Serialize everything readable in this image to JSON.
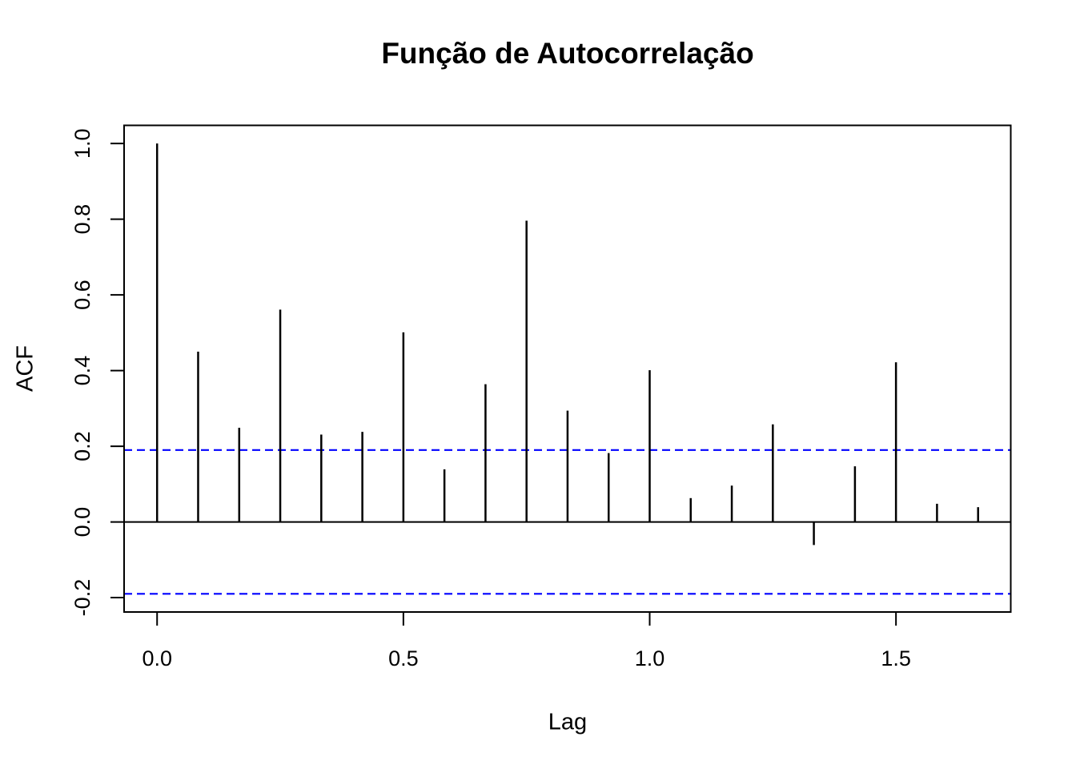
{
  "chart_data": {
    "type": "bar",
    "subtype": "acf-stem-plot",
    "title": "Função de Autocorrelação",
    "xlabel": "Lag",
    "ylabel": "ACF",
    "x": [
      0,
      0.0833,
      0.1667,
      0.25,
      0.3333,
      0.4167,
      0.5,
      0.5833,
      0.6667,
      0.75,
      0.8333,
      0.9167,
      1.0,
      1.0833,
      1.1667,
      1.25,
      1.3333,
      1.4167,
      1.5,
      1.5833,
      1.6667
    ],
    "values": [
      1.0,
      0.45,
      0.249,
      0.561,
      0.231,
      0.238,
      0.501,
      0.139,
      0.364,
      0.796,
      0.294,
      0.182,
      0.401,
      0.063,
      0.096,
      0.258,
      -0.061,
      0.147,
      0.422,
      0.048,
      0.039
    ],
    "confidence_level": 0.19,
    "zero_line_value": 0,
    "xlim": [
      -0.067,
      1.733
    ],
    "ylim": [
      -0.238,
      1.048
    ],
    "x_ticks": [
      0.0,
      0.5,
      1.0,
      1.5
    ],
    "x_tick_labels": [
      "0.0",
      "0.5",
      "1.0",
      "1.5"
    ],
    "y_ticks": [
      -0.2,
      0.0,
      0.2,
      0.4,
      0.6,
      0.8,
      1.0
    ],
    "y_tick_labels": [
      "-0.2",
      "0.0",
      "0.2",
      "0.4",
      "0.6",
      "0.8",
      "1.0"
    ],
    "grid": "off",
    "legend": "none",
    "colors": {
      "spike": "#000000",
      "axis": "#000000",
      "confidence_line": "#0000ff",
      "background": "#ffffff",
      "text": "#000000"
    }
  }
}
